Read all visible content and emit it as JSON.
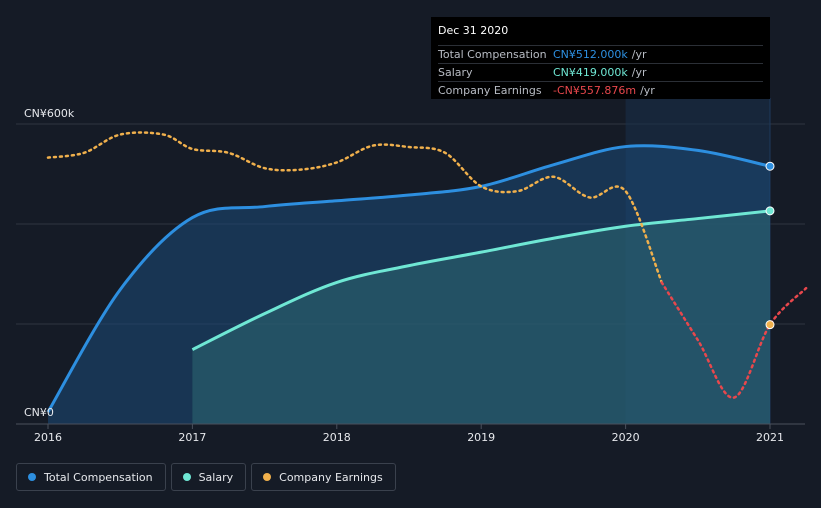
{
  "chart_data": {
    "type": "line",
    "x_ticks": [
      "2016",
      "2017",
      "2018",
      "2019",
      "2020",
      "2021"
    ],
    "y_ticks": [
      "CN¥0",
      "CN¥600k"
    ],
    "ylim": [
      0,
      600
    ],
    "y_unit": "CN¥k",
    "series": [
      {
        "name": "Total Compensation",
        "color": "#2d8fe0",
        "points": [
          [
            2016.0,
            0
          ],
          [
            2016.5,
            255
          ],
          [
            2017.0,
            405
          ],
          [
            2017.5,
            428
          ],
          [
            2018.0,
            440
          ],
          [
            2018.5,
            452
          ],
          [
            2019.0,
            470
          ],
          [
            2019.5,
            515
          ],
          [
            2020.0,
            553
          ],
          [
            2020.5,
            545
          ],
          [
            2021.0,
            512
          ]
        ]
      },
      {
        "name": "Salary",
        "color": "#6fe7d4",
        "points": [
          [
            2017.0,
            130
          ],
          [
            2017.5,
            205
          ],
          [
            2018.0,
            270
          ],
          [
            2018.5,
            305
          ],
          [
            2019.0,
            333
          ],
          [
            2019.5,
            362
          ],
          [
            2020.0,
            387
          ],
          [
            2020.5,
            403
          ],
          [
            2021.0,
            419
          ]
        ]
      },
      {
        "name": "Company Earnings",
        "color": "#f0b04c",
        "negative_color": "#e8474c",
        "note": "relative earnings line on secondary scale; sharp drop to a negative value by 2021",
        "points": [
          [
            2016.0,
            530
          ],
          [
            2016.25,
            540
          ],
          [
            2016.5,
            578
          ],
          [
            2016.8,
            578
          ],
          [
            2017.0,
            548
          ],
          [
            2017.25,
            540
          ],
          [
            2017.5,
            508
          ],
          [
            2017.75,
            505
          ],
          [
            2018.0,
            520
          ],
          [
            2018.25,
            555
          ],
          [
            2018.5,
            552
          ],
          [
            2018.75,
            540
          ],
          [
            2019.0,
            470
          ],
          [
            2019.25,
            460
          ],
          [
            2019.5,
            490
          ],
          [
            2019.75,
            447
          ],
          [
            2020.0,
            460
          ],
          [
            2020.25,
            270
          ],
          [
            2020.5,
            150
          ],
          [
            2020.75,
            30
          ],
          [
            2021.0,
            182
          ],
          [
            2021.25,
            258
          ]
        ]
      }
    ],
    "highlight_range": [
      2020.0,
      2021.0
    ]
  },
  "tooltip": {
    "date": "Dec 31 2020",
    "rows": [
      {
        "label": "Total Compensation",
        "value": "CN¥512.000k",
        "unit": "/yr",
        "color": "#2d8fe0"
      },
      {
        "label": "Salary",
        "value": "CN¥419.000k",
        "unit": "/yr",
        "color": "#6fe7d4"
      },
      {
        "label": "Company Earnings",
        "value": "-CN¥557.876m",
        "unit": "/yr",
        "color": "#e8474c"
      }
    ]
  },
  "legend": [
    {
      "label": "Total Compensation",
      "color": "#2d8fe0"
    },
    {
      "label": "Salary",
      "color": "#6fe7d4"
    },
    {
      "label": "Company Earnings",
      "color": "#f0b04c"
    }
  ]
}
